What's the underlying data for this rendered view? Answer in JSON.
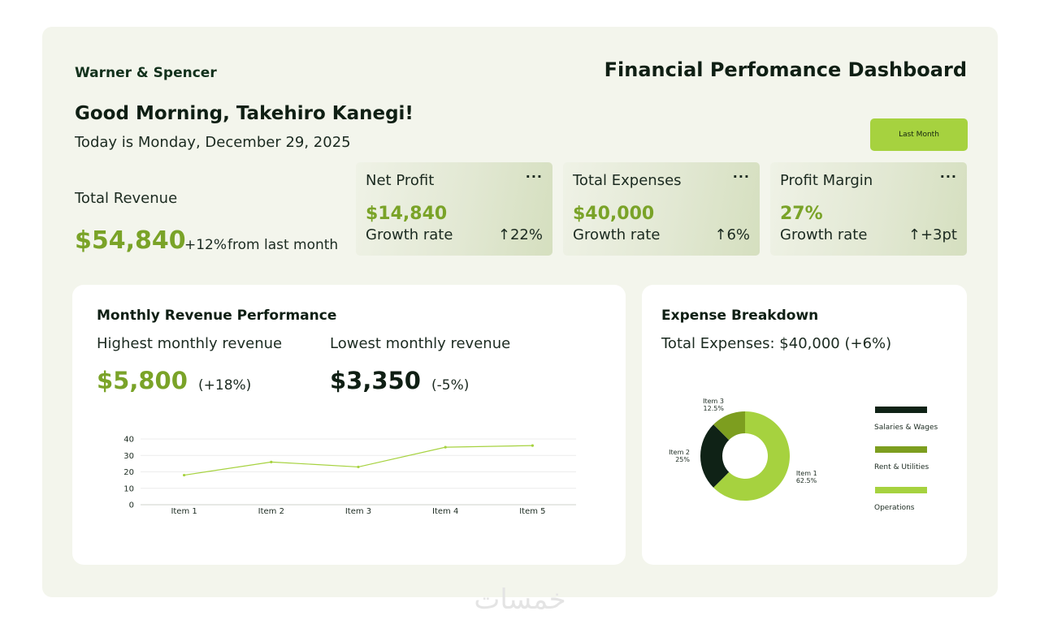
{
  "header": {
    "brand": "Warner & Spencer",
    "dashboard_title": "Financial Perfomance Dashboard",
    "greeting": "Good Morning, Takehiro Kanegi!",
    "date_line": "Today is Monday, December 29, 2025",
    "period_button": "Last Month"
  },
  "revenue": {
    "label": "Total Revenue",
    "value": "$54,840",
    "change": "+12%",
    "change_suffix": "from last month"
  },
  "kpis": [
    {
      "title": "Net Profit",
      "value": "$14,840",
      "sub": "Growth rate",
      "rate": "22%",
      "more": "···"
    },
    {
      "title": "Total Expenses",
      "value": "$40,000",
      "sub": "Growth rate",
      "rate": "6%",
      "more": "···"
    },
    {
      "title": "Profit Margin",
      "value": "27%",
      "sub": "Growth rate",
      "rate": "+3pt",
      "more": "···"
    }
  ],
  "monthly": {
    "title": "Monthly Revenue Performance",
    "highest_label": "Highest monthly revenue",
    "highest_value": "$5,800",
    "highest_change": "(+18%)",
    "lowest_label": "Lowest monthly revenue",
    "lowest_value": "$3,350",
    "lowest_change": "(-5%)"
  },
  "expense": {
    "title": "Expense Breakdown",
    "total_line": "Total Expenses: $40,000 (+6%)"
  },
  "colors": {
    "accent_green": "#7aa328",
    "lime": "#a6d23f",
    "mid_green": "#7d9e1f",
    "dark_green": "#0f2216"
  },
  "chart_data": [
    {
      "type": "line",
      "categories": [
        "Item 1",
        "Item 2",
        "Item 3",
        "Item 4",
        "Item 5"
      ],
      "series": [
        {
          "values": [
            18,
            26,
            23,
            35,
            36
          ]
        }
      ],
      "yticks": [
        0,
        10,
        20,
        30,
        40
      ],
      "ylim": [
        0,
        40
      ],
      "grid": true,
      "color": "#a6d23f"
    },
    {
      "type": "pie",
      "donut": true,
      "slices": [
        {
          "label": "Item 1",
          "percent": 62.5,
          "percent_label": "62.5%",
          "color": "#a6d23f"
        },
        {
          "label": "Item 2",
          "percent": 25,
          "percent_label": "25%",
          "color": "#0f2216"
        },
        {
          "label": "Item 3",
          "percent": 12.5,
          "percent_label": "12.5%",
          "color": "#7d9e1f"
        }
      ],
      "legend": [
        {
          "label": "Salaries & Wages",
          "color": "#0f2216"
        },
        {
          "label": "Rent & Utilities",
          "color": "#7d9e1f"
        },
        {
          "label": "Operations",
          "color": "#a6d23f"
        }
      ],
      "legend_position": "right"
    }
  ],
  "watermark": {
    "text": "خمسات"
  }
}
